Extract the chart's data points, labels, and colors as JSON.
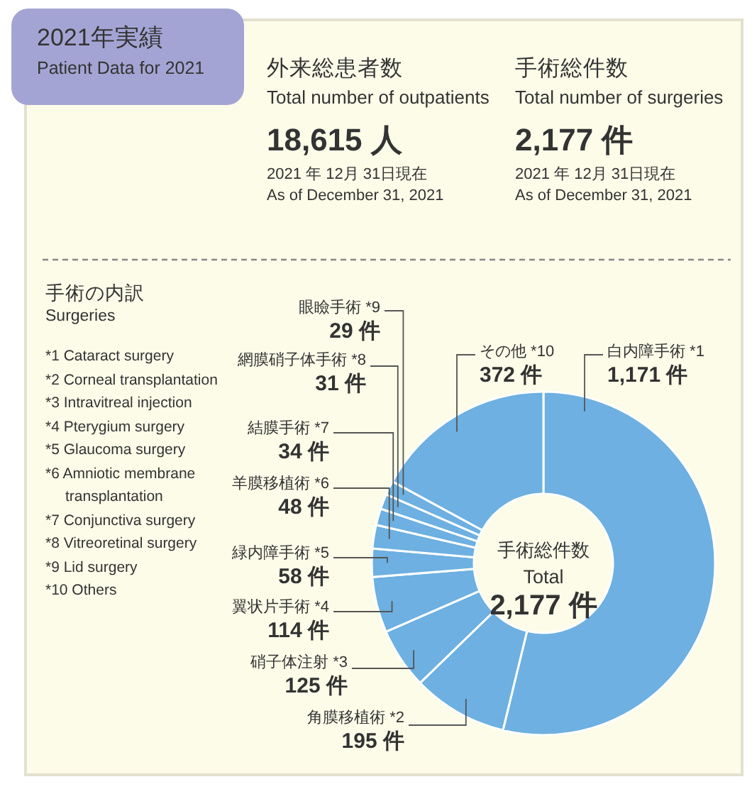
{
  "chart_data": {
    "type": "donut",
    "title": "2021年実績",
    "subtitle": "Patient Data for 2021",
    "categories": [
      "白内障手術 *1",
      "角膜移植術 *2",
      "硝子体注射 *3",
      "翼状片手術 *4",
      "緑内障手術 *5",
      "羊膜移植術 *6",
      "結膜手術 *7",
      "網膜硝子体手術 *8",
      "眼瞼手術 *9",
      "その他 *10"
    ],
    "values": [
      1171,
      195,
      125,
      114,
      58,
      48,
      34,
      31,
      29,
      372
    ],
    "value_labels": [
      "1,171 件",
      "195 件",
      "125 件",
      "114 件",
      "58 件",
      "48 件",
      "34 件",
      "31 件",
      "29 件",
      "372 件"
    ],
    "colors": [
      "#6db0e1",
      "#6db0e1",
      "#6db0e1",
      "#6db0e1",
      "#6db0e1",
      "#6db0e1",
      "#6db0e1",
      "#6db0e1",
      "#6db0e1",
      "#6db0e1"
    ],
    "annotations": [
      "外来総患者数",
      "Total number of outpatients",
      "18,615 人",
      "2021 年 12月 31日現在",
      "As of December 31, 2021",
      "手術総件数",
      "Total number of surgeries",
      "2,177 件",
      "2021 年 12月 31日現在",
      "As of December 31, 2021",
      "手術の内訳",
      "Surgeries",
      "*1 Cataract surgery",
      "*2 Corneal transplantation",
      "*3 Intravitreal injection",
      "*4 Pterygium surgery",
      "*5 Glaucoma surgery",
      "*6 Amniotic membrane transplantation",
      "*7 Conjunctiva surgery",
      "*8 Vitreoretinal surgery",
      "*9 Lid surgery",
      "*10 Others",
      "手術総件数",
      "Total",
      "2,177 件"
    ]
  }
}
